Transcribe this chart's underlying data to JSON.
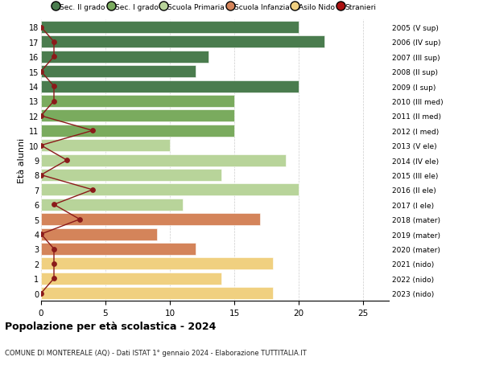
{
  "ages": [
    18,
    17,
    16,
    15,
    14,
    13,
    12,
    11,
    10,
    9,
    8,
    7,
    6,
    5,
    4,
    3,
    2,
    1,
    0
  ],
  "right_labels": [
    "2005 (V sup)",
    "2006 (IV sup)",
    "2007 (III sup)",
    "2008 (II sup)",
    "2009 (I sup)",
    "2010 (III med)",
    "2011 (II med)",
    "2012 (I med)",
    "2013 (V ele)",
    "2014 (IV ele)",
    "2015 (III ele)",
    "2016 (II ele)",
    "2017 (I ele)",
    "2018 (mater)",
    "2019 (mater)",
    "2020 (mater)",
    "2021 (nido)",
    "2022 (nido)",
    "2023 (nido)"
  ],
  "bar_values": [
    20,
    22,
    13,
    12,
    20,
    15,
    15,
    15,
    10,
    19,
    14,
    20,
    11,
    17,
    9,
    12,
    18,
    14,
    18
  ],
  "bar_colors": [
    "#4a7c4e",
    "#4a7c4e",
    "#4a7c4e",
    "#4a7c4e",
    "#4a7c4e",
    "#7aab5e",
    "#7aab5e",
    "#7aab5e",
    "#b8d49a",
    "#b8d49a",
    "#b8d49a",
    "#b8d49a",
    "#b8d49a",
    "#d4845a",
    "#d4845a",
    "#d4845a",
    "#f0d080",
    "#f0d080",
    "#f0d080"
  ],
  "stranieri_values": [
    0,
    1,
    1,
    0,
    1,
    1,
    0,
    4,
    0,
    2,
    0,
    4,
    1,
    3,
    0,
    1,
    1,
    1,
    0
  ],
  "legend_labels": [
    "Sec. II grado",
    "Sec. I grado",
    "Scuola Primaria",
    "Scuola Infanzia",
    "Asilo Nido",
    "Stranieri"
  ],
  "legend_colors": [
    "#4a7c4e",
    "#7aab5e",
    "#b8d49a",
    "#d4845a",
    "#f0d080",
    "#aa1111"
  ],
  "title": "Popolazione per età scolastica - 2024",
  "subtitle": "COMUNE DI MONTEREALE (AQ) - Dati ISTAT 1° gennaio 2024 - Elaborazione TUTTITALIA.IT",
  "ylabel_left": "Età alunni",
  "xlim": [
    0,
    27
  ],
  "bar_height": 0.82,
  "background_color": "#ffffff",
  "grid_color": "#cccccc",
  "stranieri_line_color": "#8b1a1a"
}
